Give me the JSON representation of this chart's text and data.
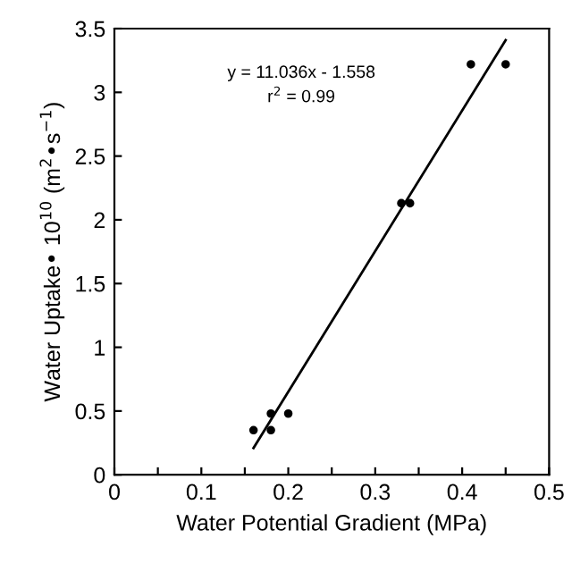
{
  "chart_data": {
    "type": "scatter",
    "xlabel": "Water Potential Gradient (MPa)",
    "ylabel": "Water Uptake• 10$^{10}$ (m$^{2}$•s$^{−1}$)",
    "series": [
      {
        "color": "#000000",
        "marker": "circle",
        "x": [
          0.16,
          0.18,
          0.18,
          0.2,
          0.33,
          0.34,
          0.41,
          0.45
        ],
        "values": [
          0.35,
          0.35,
          0.48,
          0.48,
          2.13,
          2.13,
          3.22,
          3.22
        ]
      },
      {
        "type": "line",
        "marker": "none",
        "color": "#000000",
        "x": [
          0.16,
          0.45
        ],
        "values": [
          0.21,
          3.41
        ]
      }
    ],
    "annotations": [
      "y = 11.036x - 1.558",
      "r$^{2}$ = 0.99"
    ],
    "xlim": [
      0,
      0.5
    ],
    "ylim": [
      0,
      3.5
    ],
    "xticks": [
      0,
      {
        "value": 0.05,
        "label": null
      },
      0.1,
      {
        "value": 0.15,
        "label": null
      },
      0.2,
      {
        "value": 0.25,
        "label": null
      },
      0.3,
      {
        "value": 0.35,
        "label": null
      },
      0.4,
      {
        "value": 0.45,
        "label": null
      },
      0.5
    ],
    "yticks": [
      0,
      0.5,
      1,
      1.5,
      2,
      2.5,
      3,
      3.5
    ],
    "grid": false,
    "line_style": "solid"
  }
}
